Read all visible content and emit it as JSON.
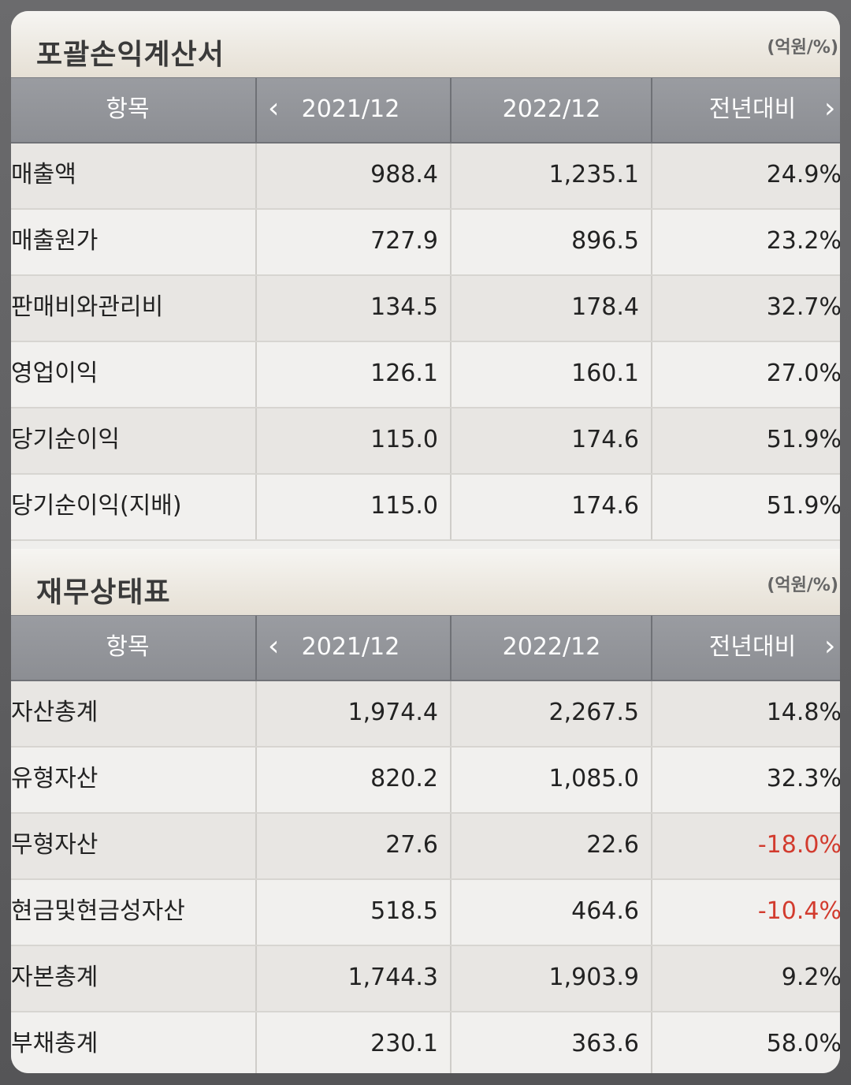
{
  "columns": {
    "item": "항목",
    "prev_arrow": "‹",
    "y2021": "2021/12",
    "y2022": "2022/12",
    "yoy": "전년대비",
    "next_arrow": "›"
  },
  "income": {
    "title": "포괄손익계산서",
    "unit": "(억원/%)",
    "rows": [
      {
        "label": "매출액",
        "v2021": "988.4",
        "v2022": "1,235.1",
        "yoy": "24.9%"
      },
      {
        "label": "매출원가",
        "v2021": "727.9",
        "v2022": "896.5",
        "yoy": "23.2%"
      },
      {
        "label": "판매비와관리비",
        "v2021": "134.5",
        "v2022": "178.4",
        "yoy": "32.7%"
      },
      {
        "label": "영업이익",
        "v2021": "126.1",
        "v2022": "160.1",
        "yoy": "27.0%"
      },
      {
        "label": "당기순이익",
        "v2021": "115.0",
        "v2022": "174.6",
        "yoy": "51.9%"
      },
      {
        "label": "당기순이익(지배)",
        "v2021": "115.0",
        "v2022": "174.6",
        "yoy": "51.9%"
      }
    ]
  },
  "balance": {
    "title": "재무상태표",
    "unit": "(억원/%)",
    "rows": [
      {
        "label": "자산총계",
        "v2021": "1,974.4",
        "v2022": "2,267.5",
        "yoy": "14.8%"
      },
      {
        "label": "유형자산",
        "v2021": "820.2",
        "v2022": "1,085.0",
        "yoy": "32.3%"
      },
      {
        "label": "무형자산",
        "v2021": "27.6",
        "v2022": "22.6",
        "yoy": "-18.0%"
      },
      {
        "label": "현금및현금성자산",
        "v2021": "518.5",
        "v2022": "464.6",
        "yoy": "-10.4%"
      },
      {
        "label": "자본총계",
        "v2021": "1,744.3",
        "v2022": "1,903.9",
        "yoy": "9.2%"
      },
      {
        "label": "부채총계",
        "v2021": "230.1",
        "v2022": "363.6",
        "yoy": "58.0%"
      }
    ]
  },
  "colors": {
    "negative": "#d23b2e",
    "header_bg": "#8c8e93",
    "text": "#222222"
  }
}
